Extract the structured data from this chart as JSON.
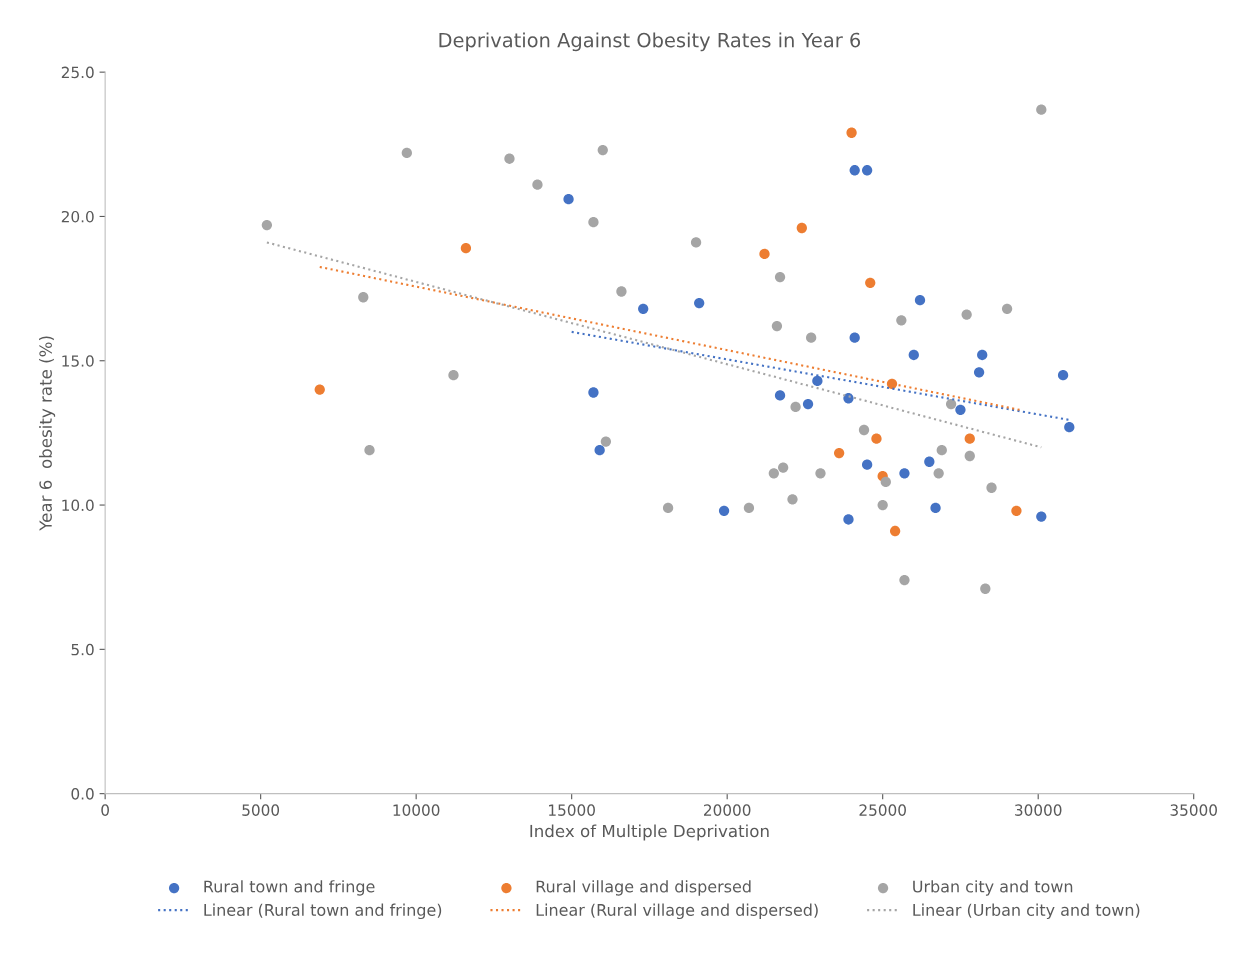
{
  "chart_data": {
    "type": "scatter",
    "title": "Deprivation Against Obesity Rates in Year 6",
    "xlabel": "Index of Multiple Deprivation",
    "ylabel": "Year 6  obesity rate (%)",
    "xlim": [
      0,
      35000
    ],
    "xticks": [
      0,
      5000,
      10000,
      15000,
      20000,
      25000,
      30000,
      35000
    ],
    "ylim": [
      0,
      25
    ],
    "yticks": [
      {
        "value": 0,
        "label": "0.0"
      },
      {
        "value": 5,
        "label": "5.0"
      },
      {
        "value": 10,
        "label": "10.0"
      },
      {
        "value": 15,
        "label": "15.0"
      },
      {
        "value": 20,
        "label": "20.0"
      },
      {
        "value": 25,
        "label": "25.0"
      }
    ],
    "grid": false,
    "legend": "bottom",
    "marker": "circle",
    "series": [
      {
        "name": "Rural town and fringe",
        "color": "#4472c4",
        "x": [
          14900,
          15700,
          15900,
          17300,
          19100,
          19900,
          21700,
          22600,
          22900,
          23900,
          23900,
          24100,
          24100,
          24500,
          24500,
          25700,
          26000,
          26200,
          26500,
          26700,
          27500,
          28100,
          28200,
          30100,
          30800,
          31000
        ],
        "values": [
          20.6,
          13.9,
          11.9,
          16.8,
          17.0,
          9.8,
          13.8,
          13.5,
          14.3,
          13.7,
          9.5,
          15.8,
          21.6,
          21.6,
          11.4,
          11.1,
          15.2,
          17.1,
          11.5,
          9.9,
          13.3,
          14.6,
          15.2,
          9.6,
          14.5,
          12.7
        ]
      },
      {
        "name": "Rural village and dispersed",
        "color": "#ed7d31",
        "x": [
          6900,
          11600,
          21200,
          22400,
          23600,
          24000,
          24600,
          24800,
          25000,
          25300,
          25400,
          27800,
          29300
        ],
        "values": [
          14.0,
          18.9,
          18.7,
          19.6,
          11.8,
          22.9,
          17.7,
          12.3,
          11.0,
          14.2,
          9.1,
          12.3,
          9.8
        ]
      },
      {
        "name": "Urban city and town",
        "color": "#a5a5a5",
        "x": [
          5200,
          8300,
          8500,
          9700,
          11200,
          13000,
          13900,
          15700,
          16000,
          16100,
          16600,
          18100,
          19000,
          20700,
          21500,
          21600,
          21700,
          21800,
          22100,
          22200,
          22700,
          23000,
          24400,
          25000,
          25100,
          25600,
          25700,
          26800,
          26900,
          27200,
          27700,
          27800,
          28300,
          28500,
          29000,
          30100
        ],
        "values": [
          19.7,
          17.2,
          11.9,
          22.2,
          14.5,
          22.0,
          21.1,
          19.8,
          22.3,
          12.2,
          17.4,
          9.9,
          19.1,
          9.9,
          11.1,
          16.2,
          17.9,
          11.3,
          10.2,
          13.4,
          15.8,
          11.1,
          12.6,
          10.0,
          10.8,
          16.4,
          7.4,
          11.1,
          11.9,
          13.5,
          16.6,
          11.7,
          7.1,
          10.6,
          16.8,
          23.7
        ]
      },
      {
        "name": "Linear (Rural town and fringe)",
        "type": "line",
        "line_style": "dotted",
        "marker": "none",
        "color": "#4472c4",
        "x": [
          15000,
          31000
        ],
        "values": [
          16.0,
          12.95
        ]
      },
      {
        "name": "Linear (Rural village and dispersed)",
        "type": "line",
        "line_style": "dotted",
        "marker": "none",
        "color": "#ed7d31",
        "x": [
          6900,
          29400
        ],
        "values": [
          18.25,
          13.3
        ]
      },
      {
        "name": "Linear (Urban city and town)",
        "type": "line",
        "line_style": "dotted",
        "marker": "none",
        "color": "#a5a5a5",
        "x": [
          5200,
          30100
        ],
        "values": [
          19.1,
          12.0
        ]
      }
    ]
  }
}
